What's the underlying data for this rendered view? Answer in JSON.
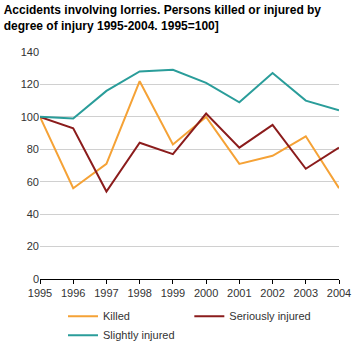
{
  "chart_data": {
    "type": "line",
    "title": "Accidents involving lorries. Persons killed or injured by degree of injury 1995-2004. 1995=100]",
    "categories": [
      "1995",
      "1996",
      "1997",
      "1998",
      "1999",
      "2000",
      "2001",
      "2002",
      "2003",
      "2004"
    ],
    "series": [
      {
        "name": "Killed",
        "color": "#f5a236",
        "values": [
          100,
          56,
          71,
          122,
          83,
          100,
          71,
          76,
          88,
          56
        ]
      },
      {
        "name": "Seriously injured",
        "color": "#8b1c1c",
        "values": [
          100,
          93,
          54,
          84,
          77,
          102,
          81,
          95,
          68,
          81
        ]
      },
      {
        "name": "Slightly injured",
        "color": "#2a9d9a",
        "values": [
          100,
          99,
          116,
          128,
          129,
          121,
          109,
          127,
          110,
          104
        ]
      }
    ],
    "ylim": [
      0,
      140
    ],
    "yticks": [
      0,
      20,
      40,
      60,
      80,
      100,
      120,
      140
    ],
    "grid": true,
    "legend": "bottom"
  }
}
